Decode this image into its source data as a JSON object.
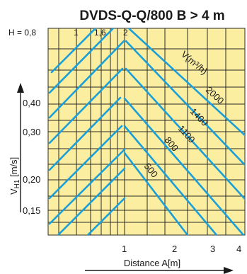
{
  "chart_data": {
    "type": "line",
    "title": "DVDS-Q-Q/800 B > 4 m",
    "xlabel": "Distance A[m]",
    "ylabel": "VH1 [m/s]",
    "ylabel_main": "V",
    "ylabel_sub": "H1",
    "ylabel_unit": " [m/s]",
    "h_label": "H = 0,8",
    "h_ticks": [
      "1",
      "1,6",
      "2"
    ],
    "x_ticks": [
      "1",
      "2",
      "3",
      "4"
    ],
    "y_ticks": [
      "0,40",
      "0,30",
      "0,20",
      "0,15"
    ],
    "v_label": "V(m³/h)",
    "series": [
      {
        "name": "2000",
        "values": []
      },
      {
        "name": "1400",
        "values": []
      },
      {
        "name": "1100",
        "values": []
      },
      {
        "name": "800",
        "values": []
      },
      {
        "name": "500",
        "values": []
      }
    ],
    "colors": {
      "grid_bg": "#fbeea0",
      "grid_line": "#2a2a2a",
      "curve": "#1a9fd8",
      "text": "#1a1a1a"
    }
  }
}
